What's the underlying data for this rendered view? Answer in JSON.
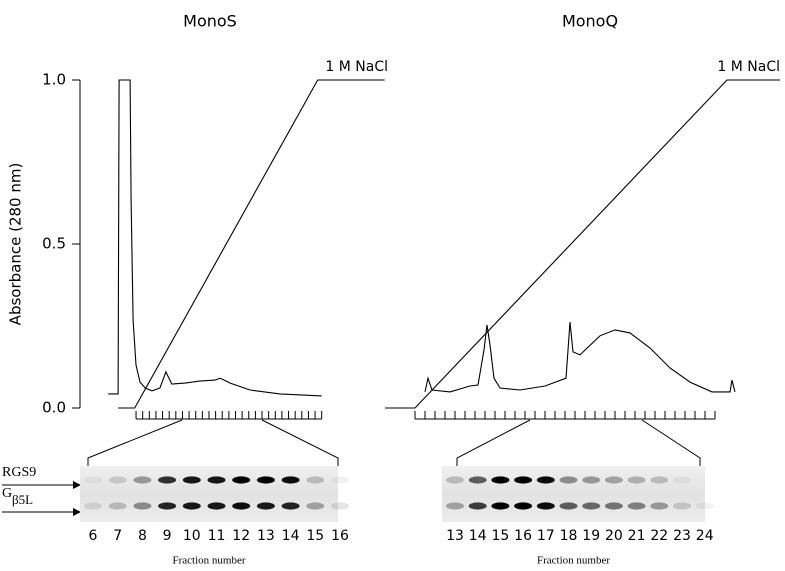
{
  "chart_data": [
    {
      "type": "line",
      "title": "MonoS",
      "ylabel": "Absorbance (280 nm)",
      "annotation": "1 M NaCl",
      "ylim": [
        0,
        1
      ],
      "yticks": [
        {
          "value": 0,
          "label": "0.0"
        },
        0.5,
        {
          "value": 1,
          "label": "1.0"
        }
      ],
      "y2lim": [
        0,
        1
      ],
      "xlim": [
        -8,
        38
      ],
      "xticks": [
        0,
        1,
        2,
        3,
        4,
        5,
        6,
        7,
        8,
        9,
        10,
        11,
        12,
        13,
        14,
        15,
        16,
        17,
        18,
        19,
        20,
        21,
        22,
        23,
        24,
        25,
        26,
        27,
        28
      ],
      "series": [
        {
          "color": "#000000",
          "x": [
            -4.2,
            -2.7,
            -2.56,
            -0.9,
            -0.75,
            -0.45,
            0,
            0.6,
            1.4,
            2.4,
            3.6,
            4.5,
            5.4,
            7.4,
            9.6,
            11.9,
            12.7,
            14.2,
            17.2,
            21.7,
            28
          ],
          "values": [
            0.043,
            0.043,
            1,
            1,
            0.634,
            0.268,
            0.131,
            0.079,
            0.061,
            0.052,
            0.061,
            0.11,
            0.073,
            0.076,
            0.082,
            0.085,
            0.091,
            0.076,
            0.055,
            0.043,
            0.037
          ]
        },
        {
          "color": "#000000",
          "axis": "y2",
          "x": [
            -2.7,
            -0.2,
            27.4,
            37.5
          ],
          "values": [
            0,
            0,
            1,
            1
          ]
        }
      ],
      "gel": {
        "lanes": [
          6,
          7,
          8,
          9,
          10,
          11,
          12,
          13,
          14,
          15,
          16
        ],
        "xlabel": "Fraction number",
        "rows": [
          {
            "label": "RGS9",
            "intensity": [
              0.05,
              0.15,
              0.35,
              0.8,
              0.9,
              0.9,
              1,
              1,
              0.95,
              0.2,
              0.05
            ]
          },
          {
            "label": {
              "main": "G",
              "sub": "β5L"
            },
            "intensity": [
              0.1,
              0.2,
              0.4,
              0.85,
              0.9,
              0.9,
              0.95,
              0.9,
              0.85,
              0.3,
              0.1
            ]
          }
        ]
      }
    },
    {
      "type": "line",
      "title": "MonoQ",
      "annotation": "1 M NaCl",
      "ylim": [
        0,
        1
      ],
      "y2lim": [
        0,
        1
      ],
      "xlim": [
        -3,
        36.5
      ],
      "xticks": [
        0,
        1,
        2,
        3,
        4,
        5,
        6,
        7,
        8,
        9,
        10,
        11,
        12,
        13,
        14,
        15,
        16,
        17,
        18,
        19,
        20,
        21,
        22,
        23,
        24,
        25,
        26,
        27,
        28,
        29,
        30
      ],
      "series": [
        {
          "color": "#000000",
          "x": [
            1,
            1.3,
            1.7,
            3.5,
            5.5,
            6.3,
            6.9,
            7.2,
            7.5,
            7.9,
            8.5,
            10.5,
            13,
            15.1,
            15.5,
            15.8,
            16.5,
            18.5,
            20,
            21.5,
            23.5,
            25.5,
            27.5,
            29.7,
            31.5,
            31.7,
            32
          ],
          "values": [
            0.049,
            0.091,
            0.055,
            0.049,
            0.067,
            0.07,
            0.177,
            0.253,
            0.192,
            0.091,
            0.061,
            0.055,
            0.067,
            0.091,
            0.262,
            0.171,
            0.162,
            0.22,
            0.238,
            0.229,
            0.183,
            0.122,
            0.079,
            0.049,
            0.049,
            0.085,
            0.049
          ]
        },
        {
          "color": "#000000",
          "axis": "y2",
          "x": [
            -3,
            0,
            31.2,
            36.5
          ],
          "values": [
            0,
            0,
            1,
            1
          ]
        }
      ],
      "gel": {
        "lanes": [
          13,
          14,
          15,
          16,
          17,
          18,
          19,
          20,
          21,
          22,
          23,
          24
        ],
        "xlabel": "Fraction number",
        "rows": [
          {
            "intensity": [
              0.2,
              0.6,
              1,
              1,
              0.95,
              0.4,
              0.35,
              0.3,
              0.25,
              0.2,
              0.05,
              0
            ]
          },
          {
            "intensity": [
              0.3,
              0.75,
              1,
              1,
              0.95,
              0.6,
              0.55,
              0.5,
              0.45,
              0.35,
              0.15,
              0.05
            ]
          }
        ]
      }
    }
  ]
}
